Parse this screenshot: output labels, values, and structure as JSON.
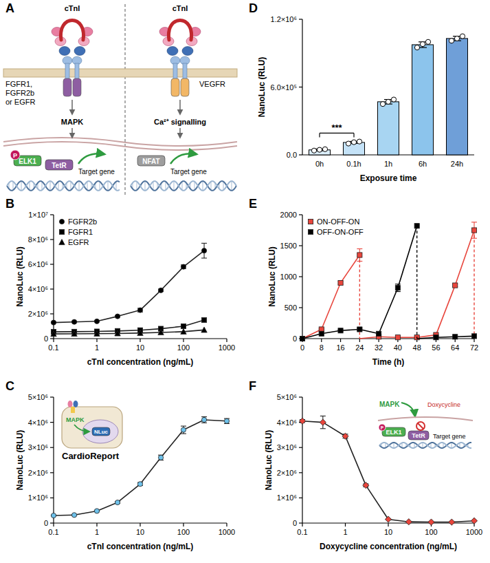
{
  "diagram": {
    "panel": "A",
    "left": {
      "ligand": "cTnI",
      "receptor": [
        "FGFR1,",
        "FGFR2b",
        "or EGFR"
      ],
      "pathway": "MAPK",
      "phospho": "P",
      "factors": [
        "ELK1",
        "TetR"
      ],
      "output": "Target gene"
    },
    "right": {
      "ligand": "cTnI",
      "receptor": [
        "VEGFR"
      ],
      "pathway": "Ca²⁺ signalling",
      "factors": [
        "NFAT"
      ],
      "output": "Target gene"
    }
  },
  "chart_data": [
    {
      "panel": "B",
      "type": "line",
      "x_label": "cTnI concentration (ng/mL)",
      "y_label": "NanoLuc (RLU)",
      "log": "x",
      "x": [
        0.1,
        0.3,
        1,
        3,
        10,
        30,
        100,
        300
      ],
      "xlim": [
        0.1,
        1000
      ],
      "xticks": [
        0.1,
        1,
        10,
        100,
        1000
      ],
      "ylim": [
        0,
        10000000
      ],
      "yticks": [
        0,
        {
          "value": 2000000,
          "label": "2×10⁶"
        },
        {
          "value": 4000000,
          "label": "4×10⁶"
        },
        {
          "value": 6000000,
          "label": "6×10⁶"
        },
        {
          "value": 8000000,
          "label": "8×10⁶"
        },
        {
          "value": 10000000,
          "label": "1×10⁷"
        }
      ],
      "legend": "top-left",
      "series": [
        {
          "name": "FGFR2b",
          "color": "#000000",
          "marker": "circle",
          "values": [
            1300000,
            1350000,
            1400000,
            1800000,
            2300000,
            3900000,
            5800000,
            7100000
          ],
          "errors": [
            50000,
            50000,
            50000,
            60000,
            150000,
            100000,
            150000,
            600000
          ]
        },
        {
          "name": "FGFR1",
          "color": "#000000",
          "marker": "square",
          "values": [
            550000,
            560000,
            580000,
            620000,
            680000,
            800000,
            1000000,
            1500000
          ]
        },
        {
          "name": "EGFR",
          "color": "#000000",
          "marker": "triangle",
          "values": [
            380000,
            390000,
            400000,
            420000,
            450000,
            500000,
            560000,
            700000
          ]
        }
      ]
    },
    {
      "panel": "C",
      "type": "line",
      "x_label": "cTnI concentration (ng/mL)",
      "y_label": "NanoLuc (RLU)",
      "log": "x",
      "x": [
        0.1,
        0.3,
        1,
        3,
        10,
        30,
        100,
        300,
        1000
      ],
      "xlim": [
        0.1,
        1000
      ],
      "xticks": [
        0.1,
        1,
        10,
        100,
        1000
      ],
      "ylim": [
        0,
        5000000
      ],
      "yticks": [
        0,
        {
          "value": 1000000,
          "label": "1×10⁶"
        },
        {
          "value": 2000000,
          "label": "2×10⁶"
        },
        {
          "value": 3000000,
          "label": "3×10⁶"
        },
        {
          "value": 4000000,
          "label": "4×10⁶"
        },
        {
          "value": 5000000,
          "label": "5×10⁶"
        }
      ],
      "series": [
        {
          "color": "#6ec1ea",
          "marker": "circle",
          "values": [
            300000,
            320000,
            480000,
            820000,
            1550000,
            2600000,
            3700000,
            4100000,
            4050000
          ],
          "errors": [
            20000,
            20000,
            30000,
            40000,
            60000,
            100000,
            150000,
            120000,
            100000
          ]
        }
      ],
      "inset": {
        "pathway": "MAPK",
        "reporter": "NLuc",
        "title": "CardioReport"
      }
    },
    {
      "panel": "D",
      "type": "bar",
      "x_label": "Exposure time",
      "y_label": "NanoLuc (RLU)",
      "categories": [
        "0h",
        "0.1h",
        "1h",
        "6h",
        "24h"
      ],
      "values": [
        44000,
        110000,
        470000,
        975000,
        1030000
      ],
      "errors": [
        8000,
        9000,
        20000,
        25000,
        20000
      ],
      "points": [
        [
          38000,
          45000,
          50000
        ],
        [
          100000,
          112000,
          118000
        ],
        [
          450000,
          470000,
          490000
        ],
        [
          950000,
          980000,
          1000000
        ],
        [
          1010000,
          1030000,
          1050000
        ]
      ],
      "colors": [
        "#dbeefb",
        "#c4e2f7",
        "#a8d5f2",
        "#8cc4ec",
        "#6f9fd8"
      ],
      "ylim": [
        0,
        1200000
      ],
      "yticks": [
        {
          "value": 0,
          "label": "0.0"
        },
        {
          "value": 600000,
          "label": "6.0×10⁵"
        },
        {
          "value": 1200000,
          "label": "1.2×10⁶"
        }
      ],
      "annotations": [
        {
          "text": "***",
          "between": [
            0,
            1
          ]
        }
      ]
    },
    {
      "panel": "E",
      "type": "line",
      "x_label": "Time (h)",
      "y_label": "NanoLuc (RLU)",
      "x": [
        0,
        8,
        16,
        24,
        32,
        40,
        48,
        56,
        64,
        72
      ],
      "xlim": [
        0,
        72
      ],
      "xticks": [
        0,
        8,
        16,
        24,
        32,
        40,
        48,
        56,
        64,
        72
      ],
      "ylim": [
        0,
        2000
      ],
      "yticks": [
        0,
        500,
        1000,
        1500,
        2000
      ],
      "legend": "top-left",
      "series": [
        {
          "name": "ON-OFF-ON",
          "color": "#e8453c",
          "marker": "square",
          "values": [
            0,
            150,
            900,
            1350,
            30,
            20,
            20,
            60,
            860,
            1750
          ],
          "errors": [
            0,
            10,
            20,
            100,
            0,
            0,
            0,
            0,
            20,
            130
          ],
          "resets": [
            24,
            72
          ]
        },
        {
          "name": "OFF-ON-OFF",
          "color": "#000000",
          "marker": "square",
          "values": [
            0,
            80,
            130,
            150,
            80,
            820,
            1820,
            20,
            30,
            40
          ],
          "errors": [
            0,
            0,
            10,
            20,
            0,
            60,
            0,
            0,
            0,
            0
          ],
          "resets": [
            48
          ]
        }
      ]
    },
    {
      "panel": "F",
      "type": "line",
      "x_label": "Doxycycline concentration (ng/mL)",
      "y_label": "NanoLuc (RLU)",
      "log": "x",
      "x": [
        0.1,
        0.3,
        1,
        3,
        10,
        30,
        100,
        300,
        1000
      ],
      "xlim": [
        0.1,
        1000
      ],
      "xticks": [
        0.1,
        1,
        10,
        100,
        1000
      ],
      "ylim": [
        0,
        5000000
      ],
      "yticks": [
        0,
        {
          "value": 1000000,
          "label": "1×10⁶"
        },
        {
          "value": 2000000,
          "label": "2×10⁶"
        },
        {
          "value": 3000000,
          "label": "3×10⁶"
        },
        {
          "value": 4000000,
          "label": "4×10⁶"
        },
        {
          "value": 5000000,
          "label": "5×10⁶"
        }
      ],
      "series": [
        {
          "color": "#e8453c",
          "marker": "diamond",
          "values": [
            4050000,
            4000000,
            3450000,
            1500000,
            150000,
            50000,
            40000,
            40000,
            90000
          ],
          "errors": [
            60000,
            250000,
            80000,
            60000,
            20000,
            10000,
            10000,
            10000,
            10000
          ]
        }
      ],
      "inset": {
        "pathway": "MAPK",
        "drug": "Doxycycline",
        "phospho": "P",
        "factors": [
          "ELK1",
          "TetR"
        ],
        "output": "Target gene"
      }
    }
  ]
}
